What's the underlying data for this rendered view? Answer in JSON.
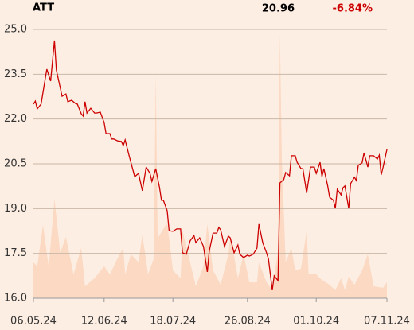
{
  "chart_data": {
    "type": "line",
    "title": "ATT",
    "annotations": [
      "20.96",
      "-6.84%"
    ],
    "ylim": [
      16,
      25
    ],
    "yticks": [
      {
        "value": 16,
        "label": "16.0"
      },
      17.5,
      {
        "value": 19,
        "label": "19.0"
      },
      20.5,
      {
        "value": 22,
        "label": "22.0"
      },
      23.5,
      {
        "value": 25,
        "label": "25.0"
      }
    ],
    "xlim": [
      0,
      185
    ],
    "xticks": [
      {
        "value": 0,
        "label": "06.05.24"
      },
      {
        "value": 37,
        "label": "12.06.24"
      },
      {
        "value": 73,
        "label": "18.07.24"
      },
      {
        "value": 112,
        "label": "26.08.24"
      },
      {
        "value": 148,
        "label": "01.10.24"
      },
      {
        "value": 185,
        "label": "07.11.24"
      }
    ],
    "grid": true,
    "series": [
      {
        "color": "#cc0000",
        "x": [
          0,
          1,
          2,
          4,
          7,
          9,
          11,
          12,
          15,
          17,
          18,
          20,
          22,
          23,
          25,
          26,
          27,
          28,
          30,
          32,
          33,
          35,
          37,
          38,
          40,
          41,
          42,
          44,
          46,
          47,
          48,
          50,
          53,
          55,
          57,
          59,
          61,
          62,
          64,
          66,
          67,
          68,
          70,
          71,
          73,
          75,
          77,
          78,
          80,
          82,
          84,
          85,
          87,
          89,
          91,
          92,
          94,
          96,
          97,
          98,
          100,
          102,
          103,
          105,
          107,
          108,
          110,
          112,
          113,
          115,
          117,
          118,
          120,
          122,
          123,
          125,
          126,
          128,
          129,
          131,
          132,
          134,
          135,
          137,
          138,
          140,
          141,
          143,
          145,
          147,
          148,
          150,
          151,
          152,
          154,
          155,
          157,
          158,
          159,
          161,
          162,
          163,
          165,
          166,
          168,
          169,
          170,
          172,
          173,
          175,
          176,
          178,
          180,
          181,
          182,
          183,
          185
        ],
        "values": [
          22.5,
          22.6,
          22.34,
          22.5,
          23.67,
          23.27,
          24.63,
          23.64,
          22.76,
          22.84,
          22.58,
          22.63,
          22.52,
          22.5,
          22.18,
          22.1,
          22.58,
          22.2,
          22.36,
          22.2,
          22.2,
          22.23,
          21.88,
          21.51,
          21.51,
          21.33,
          21.33,
          21.27,
          21.25,
          21.11,
          21.3,
          20.79,
          20.07,
          20.18,
          19.6,
          20.39,
          20.18,
          19.91,
          20.34,
          19.7,
          19.28,
          19.28,
          18.93,
          18.26,
          18.24,
          18.32,
          18.32,
          17.52,
          17.47,
          17.92,
          18.1,
          17.86,
          18.02,
          17.73,
          16.88,
          17.57,
          18.18,
          18.18,
          18.37,
          18.29,
          17.73,
          18.08,
          18.02,
          17.52,
          17.78,
          17.47,
          17.36,
          17.44,
          17.41,
          17.47,
          17.68,
          18.48,
          17.86,
          17.52,
          17.31,
          16.27,
          16.75,
          16.59,
          19.86,
          19.97,
          20.21,
          20.1,
          20.77,
          20.77,
          20.55,
          20.34,
          20.34,
          19.52,
          20.39,
          20.39,
          20.18,
          20.55,
          20.07,
          20.34,
          19.76,
          19.38,
          19.28,
          19.01,
          19.65,
          19.46,
          19.7,
          19.76,
          19.01,
          19.84,
          20.05,
          19.94,
          20.45,
          20.53,
          20.87,
          20.39,
          20.77,
          20.77,
          20.66,
          20.79,
          20.13,
          20.39,
          20.98
        ]
      },
      {
        "color": "#fbd9c2",
        "kind": "area",
        "x": [
          0,
          2,
          5,
          8,
          11,
          14,
          17,
          21,
          25,
          27,
          32,
          37,
          40,
          44,
          47,
          48,
          51,
          55,
          57,
          60,
          63,
          64,
          65,
          70,
          73,
          77,
          78,
          82,
          85,
          89,
          91,
          94,
          98,
          102,
          103,
          105,
          107,
          110,
          113,
          117,
          118,
          122,
          125,
          128,
          129,
          130,
          132,
          135,
          137,
          140,
          143,
          144,
          148,
          151,
          155,
          158,
          161,
          163,
          165,
          168,
          172,
          175,
          178,
          183,
          185
        ],
        "values": [
          17.2,
          17.07,
          18.46,
          17.04,
          19.33,
          17.52,
          18.05,
          16.8,
          17.68,
          16.4,
          16.67,
          17.07,
          16.8,
          17.33,
          17.68,
          16.8,
          17.47,
          17.2,
          18.13,
          16.8,
          17.33,
          23.54,
          18.0,
          18.53,
          16.93,
          16.67,
          18.26,
          17.2,
          16.4,
          17.07,
          18.48,
          16.93,
          16.45,
          17.47,
          18.0,
          17.41,
          16.67,
          17.47,
          16.53,
          16.53,
          17.2,
          16.53,
          16.27,
          17.6,
          24.87,
          20.66,
          17.2,
          17.68,
          16.93,
          16.99,
          18.26,
          16.8,
          16.8,
          16.61,
          16.45,
          16.27,
          16.67,
          16.27,
          16.72,
          16.45,
          16.93,
          17.47,
          16.4,
          16.35,
          16.53
        ]
      }
    ]
  }
}
